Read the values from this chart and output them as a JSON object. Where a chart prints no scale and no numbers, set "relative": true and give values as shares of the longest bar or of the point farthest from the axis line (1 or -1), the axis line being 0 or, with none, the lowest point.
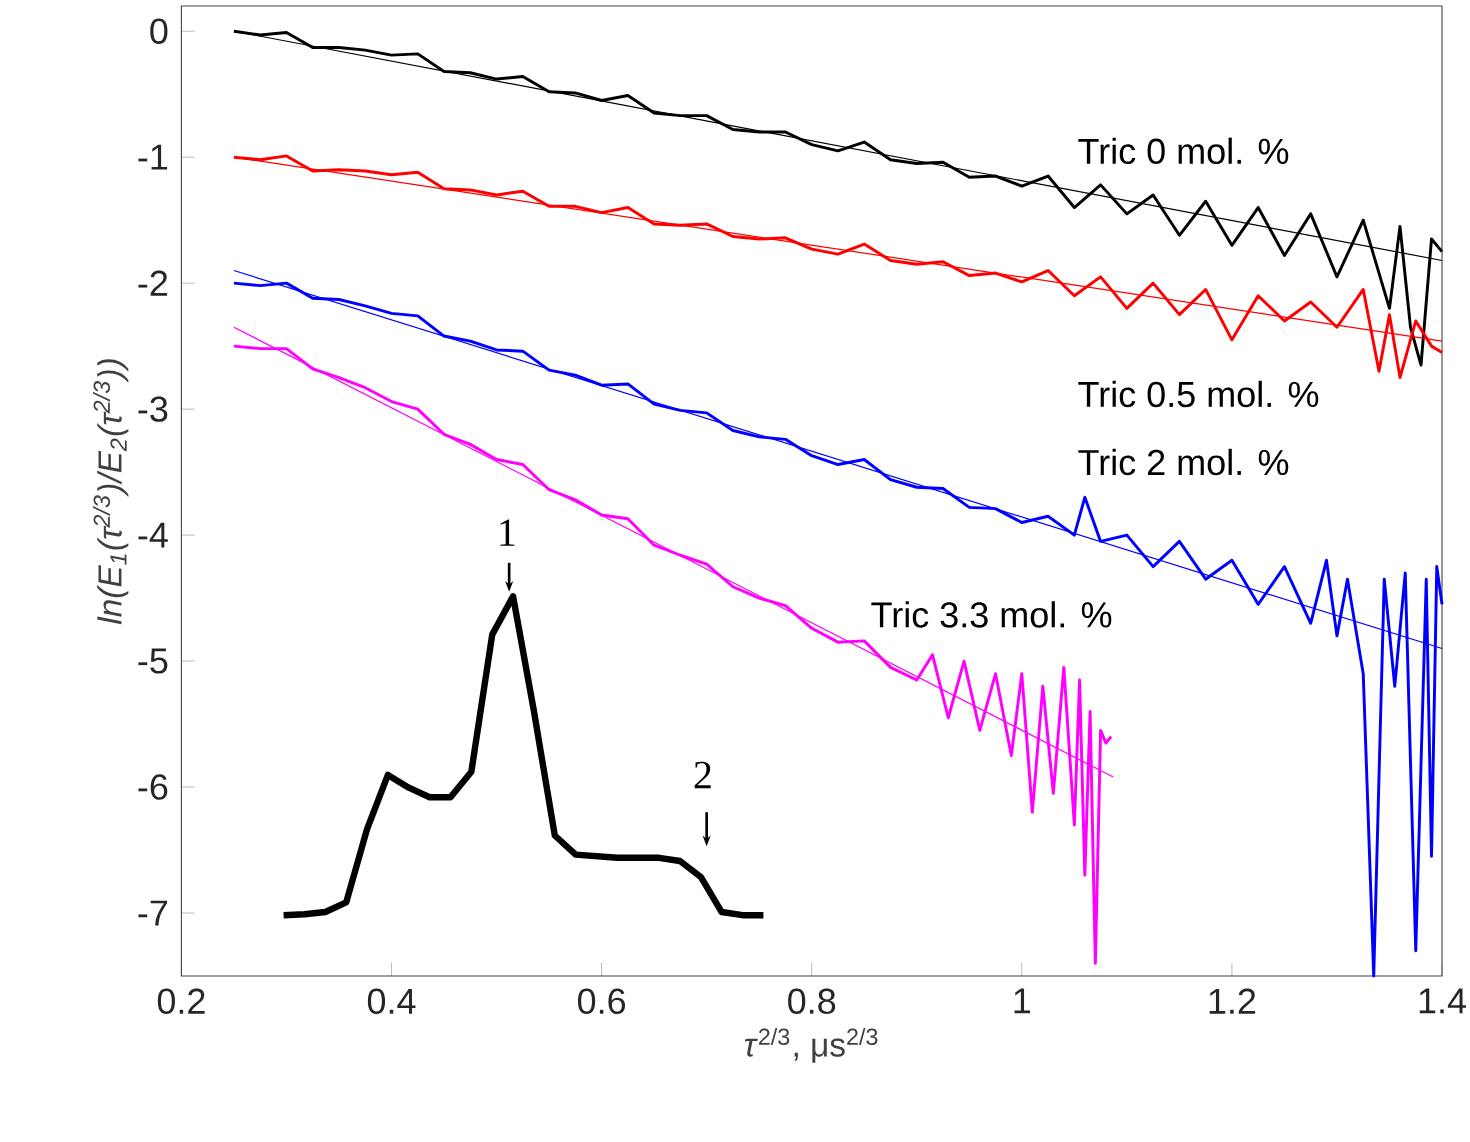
{
  "chart_data": [
    {
      "type": "line",
      "xlabel": "*τ*$^{2/3}$, μs$^{2/3}$",
      "ylabel": "ln(E$_{1}$(τ$^{2/3}$)/E$_{2}$(τ$^{2/3}$))",
      "xlim": [
        0.2,
        1.4
      ],
      "ylim": [
        -7.5,
        0.2
      ],
      "xticks": [
        0.2,
        0.4,
        0.6,
        0.8,
        1,
        1.2,
        1.4
      ],
      "yticks": [
        -7,
        -6,
        -5,
        -4,
        -3,
        -2,
        -1,
        0
      ],
      "legend": false,
      "marker": "none",
      "line_style": "solid",
      "series": [
        {
          "name": "Tric 0 mol. %",
          "color": "#000000",
          "x": [
            0.25,
            0.275,
            0.3,
            0.325,
            0.35,
            0.375,
            0.4,
            0.425,
            0.45,
            0.475,
            0.5,
            0.525,
            0.55,
            0.575,
            0.6,
            0.625,
            0.65,
            0.675,
            0.7,
            0.725,
            0.75,
            0.775,
            0.8,
            0.825,
            0.85,
            0.875,
            0.9,
            0.925,
            0.95,
            0.975,
            1.0,
            1.025,
            1.05,
            1.075,
            1.1,
            1.125,
            1.15,
            1.175,
            1.2,
            1.225,
            1.25,
            1.275,
            1.3,
            1.325,
            1.35,
            1.36,
            1.37,
            1.38,
            1.39,
            1.4
          ],
          "values": [
            0.0,
            -0.03,
            -0.01,
            -0.13,
            -0.13,
            -0.15,
            -0.19,
            -0.18,
            -0.32,
            -0.33,
            -0.38,
            -0.36,
            -0.48,
            -0.49,
            -0.55,
            -0.51,
            -0.65,
            -0.67,
            -0.67,
            -0.78,
            -0.8,
            -0.8,
            -0.9,
            -0.95,
            -0.88,
            -1.02,
            -1.05,
            -1.04,
            -1.16,
            -1.15,
            -1.23,
            -1.15,
            -1.4,
            -1.22,
            -1.45,
            -1.3,
            -1.62,
            -1.35,
            -1.7,
            -1.4,
            -1.78,
            -1.45,
            -1.95,
            -1.5,
            -2.2,
            -1.55,
            -2.35,
            -2.65,
            -1.65,
            -1.75
          ]
        },
        {
          "name": "Tric 0.5 mol. %",
          "color": "#ff0000",
          "x": [
            0.25,
            0.275,
            0.3,
            0.325,
            0.35,
            0.375,
            0.4,
            0.425,
            0.45,
            0.475,
            0.5,
            0.525,
            0.55,
            0.575,
            0.6,
            0.625,
            0.65,
            0.675,
            0.7,
            0.725,
            0.75,
            0.775,
            0.8,
            0.825,
            0.85,
            0.875,
            0.9,
            0.925,
            0.95,
            0.975,
            1.0,
            1.025,
            1.05,
            1.075,
            1.1,
            1.125,
            1.15,
            1.175,
            1.2,
            1.225,
            1.25,
            1.275,
            1.3,
            1.325,
            1.34,
            1.35,
            1.36,
            1.375,
            1.39,
            1.4
          ],
          "values": [
            -1.0,
            -1.02,
            -0.99,
            -1.11,
            -1.1,
            -1.11,
            -1.14,
            -1.12,
            -1.25,
            -1.26,
            -1.3,
            -1.27,
            -1.39,
            -1.39,
            -1.44,
            -1.4,
            -1.53,
            -1.54,
            -1.53,
            -1.63,
            -1.65,
            -1.64,
            -1.73,
            -1.77,
            -1.69,
            -1.82,
            -1.85,
            -1.83,
            -1.94,
            -1.92,
            -1.99,
            -1.9,
            -2.1,
            -1.95,
            -2.2,
            -2.0,
            -2.25,
            -2.05,
            -2.45,
            -2.1,
            -2.3,
            -2.15,
            -2.35,
            -2.05,
            -2.7,
            -2.25,
            -2.75,
            -2.3,
            -2.5,
            -2.55
          ]
        },
        {
          "name": "Tric 2 mol. %",
          "color": "#0000ff",
          "x": [
            0.25,
            0.275,
            0.3,
            0.325,
            0.35,
            0.375,
            0.4,
            0.425,
            0.45,
            0.475,
            0.5,
            0.525,
            0.55,
            0.575,
            0.6,
            0.625,
            0.65,
            0.675,
            0.7,
            0.725,
            0.75,
            0.775,
            0.8,
            0.825,
            0.85,
            0.875,
            0.9,
            0.925,
            0.95,
            0.975,
            1.0,
            1.025,
            1.05,
            1.06,
            1.075,
            1.1,
            1.125,
            1.15,
            1.175,
            1.2,
            1.225,
            1.25,
            1.275,
            1.29,
            1.3,
            1.31,
            1.325,
            1.335,
            1.345,
            1.355,
            1.365,
            1.375,
            1.385,
            1.39,
            1.395,
            1.4
          ],
          "values": [
            -2.0,
            -2.02,
            -2.0,
            -2.12,
            -2.13,
            -2.18,
            -2.24,
            -2.26,
            -2.42,
            -2.46,
            -2.53,
            -2.54,
            -2.69,
            -2.73,
            -2.81,
            -2.8,
            -2.96,
            -3.01,
            -3.03,
            -3.17,
            -3.22,
            -3.24,
            -3.37,
            -3.44,
            -3.4,
            -3.56,
            -3.62,
            -3.63,
            -3.78,
            -3.79,
            -3.9,
            -3.85,
            -4.0,
            -3.7,
            -4.05,
            -4.0,
            -4.25,
            -4.05,
            -4.35,
            -4.2,
            -4.55,
            -4.25,
            -4.7,
            -4.2,
            -4.8,
            -4.35,
            -5.1,
            -7.5,
            -4.35,
            -5.2,
            -4.3,
            -7.3,
            -4.35,
            -6.55,
            -4.25,
            -4.55
          ]
        },
        {
          "name": "Tric 3.3 mol. %",
          "color": "#ff00ff",
          "x": [
            0.25,
            0.275,
            0.3,
            0.325,
            0.35,
            0.375,
            0.4,
            0.425,
            0.45,
            0.475,
            0.5,
            0.525,
            0.55,
            0.575,
            0.6,
            0.625,
            0.65,
            0.675,
            0.7,
            0.725,
            0.75,
            0.775,
            0.8,
            0.825,
            0.85,
            0.875,
            0.9,
            0.915,
            0.93,
            0.945,
            0.96,
            0.975,
            0.99,
            1.0,
            1.01,
            1.02,
            1.03,
            1.04,
            1.05,
            1.055,
            1.06,
            1.065,
            1.07,
            1.075,
            1.08,
            1.085
          ],
          "values": [
            -2.5,
            -2.52,
            -2.52,
            -2.68,
            -2.75,
            -2.83,
            -2.94,
            -3.0,
            -3.2,
            -3.28,
            -3.4,
            -3.44,
            -3.64,
            -3.72,
            -3.84,
            -3.87,
            -4.08,
            -4.16,
            -4.23,
            -4.41,
            -4.5,
            -4.56,
            -4.74,
            -4.85,
            -4.84,
            -5.05,
            -5.15,
            -4.95,
            -5.45,
            -5.0,
            -5.55,
            -5.1,
            -5.75,
            -5.1,
            -6.2,
            -5.2,
            -6.05,
            -5.05,
            -6.3,
            -5.15,
            -6.7,
            -5.4,
            -7.4,
            -5.55,
            -5.65,
            -5.6
          ]
        },
        {
          "color": "#000000",
          "x": [
            0.25,
            1.4
          ],
          "values": [
            0.0,
            -1.82
          ]
        },
        {
          "color": "#ff0000",
          "x": [
            0.25,
            1.4
          ],
          "values": [
            -1.0,
            -2.46
          ]
        },
        {
          "color": "#0000ff",
          "x": [
            0.25,
            1.4
          ],
          "values": [
            -1.9,
            -4.9
          ]
        },
        {
          "color": "#ff00ff",
          "x": [
            0.25,
            1.087
          ],
          "values": [
            -2.35,
            -5.92
          ]
        }
      ]
    },
    {
      "type": "line",
      "relative": true,
      "color": "#000000",
      "annotations": [
        "1",
        "2"
      ],
      "categories": [
        null,
        null,
        null,
        null,
        null,
        null,
        null,
        null,
        null,
        null,
        null,
        null,
        null,
        null,
        null,
        null,
        null,
        null,
        null,
        null,
        null,
        null,
        null,
        null
      ],
      "values": [
        0,
        0.003,
        0.01,
        0.04,
        0.27,
        0.44,
        0.4,
        0.37,
        0.37,
        0.45,
        0.88,
        1.0,
        0.64,
        0.25,
        0.19,
        0.185,
        0.18,
        0.18,
        0.18,
        0.17,
        0.12,
        0.01,
        0,
        0
      ]
    }
  ]
}
